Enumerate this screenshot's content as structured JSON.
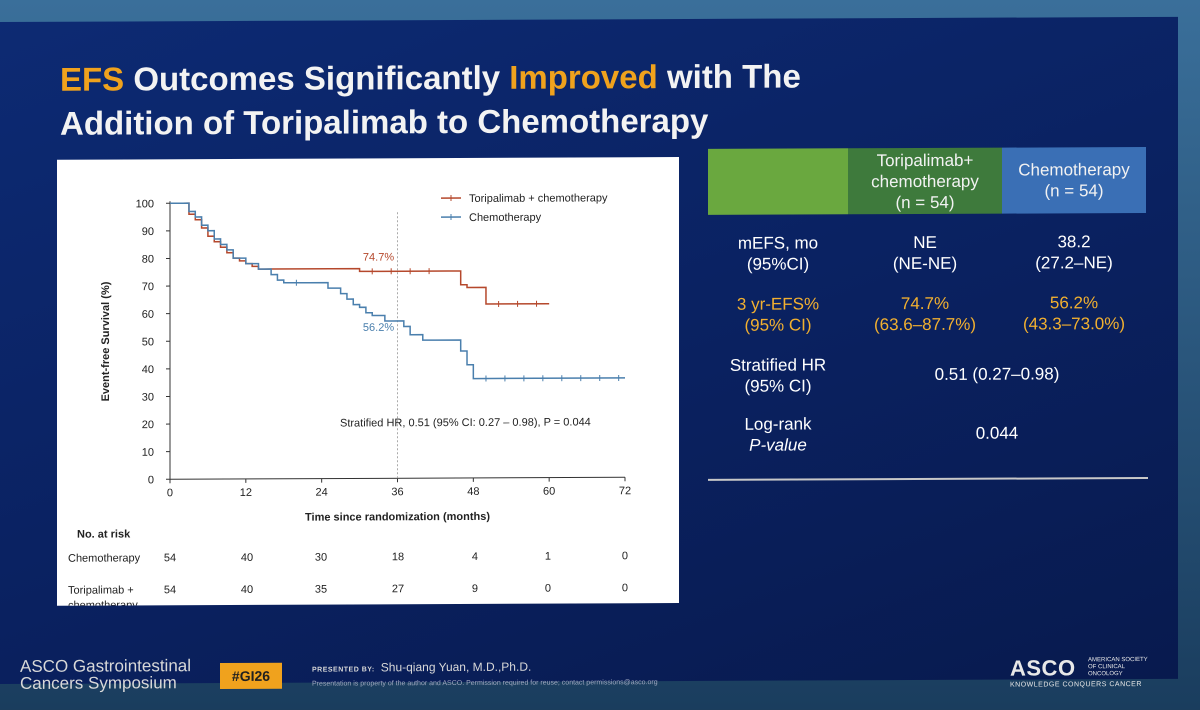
{
  "slide": {
    "title_part1": "EFS",
    "title_part2": " Outcomes Significantly ",
    "title_part3": "Improved",
    "title_part4": " with The",
    "title_line2": "Addition of Toripalimab to Chemotherapy"
  },
  "chart_data": {
    "type": "line",
    "title": "",
    "xlabel": "Time since randomization (months)",
    "ylabel": "Event-free Survival (%)",
    "xlim": [
      0,
      72
    ],
    "ylim": [
      0,
      100
    ],
    "xticks": [
      0,
      12,
      24,
      36,
      48,
      60,
      72
    ],
    "yticks": [
      0,
      10,
      20,
      30,
      40,
      50,
      60,
      70,
      80,
      90,
      100
    ],
    "series": [
      {
        "name": "Toripalimab + chemotherapy",
        "color": "#b5482c",
        "x": [
          0,
          2,
          3,
          4,
          5,
          6,
          7,
          8,
          9,
          10,
          11,
          12,
          13,
          14,
          15,
          16,
          30,
          44,
          46,
          47,
          50,
          60
        ],
        "y": [
          100,
          100,
          96,
          94,
          91,
          88,
          86,
          84,
          82,
          80,
          79,
          78,
          77,
          76,
          76,
          76,
          75,
          75,
          70,
          69,
          63,
          63
        ],
        "label": "74.7%"
      },
      {
        "name": "Chemotherapy",
        "color": "#4a7fad",
        "x": [
          0,
          2,
          3,
          4,
          5,
          6,
          7,
          8,
          9,
          10,
          12,
          14,
          16,
          17,
          18,
          22,
          25,
          27,
          28,
          29,
          30,
          31,
          32,
          34,
          35,
          37,
          38,
          40,
          42,
          46,
          47,
          48,
          72
        ],
        "y": [
          100,
          100,
          97,
          95,
          92,
          90,
          87,
          85,
          83,
          80,
          78,
          76,
          74,
          72,
          71,
          71,
          69,
          67,
          65,
          63,
          62,
          60,
          59,
          57,
          57,
          55,
          52,
          50,
          50,
          46,
          41,
          36,
          36
        ],
        "label": "56.2%"
      }
    ],
    "annotation": "Stratified HR, 0.51 (95% CI: 0.27 – 0.98), P = 0.044",
    "reference_month": 36,
    "legend": [
      "Toripalimab + chemotherapy",
      "Chemotherapy"
    ],
    "risk_table": {
      "title": "No. at risk",
      "rows": [
        {
          "label": "Chemotherapy",
          "values": [
            "54",
            "40",
            "30",
            "18",
            "4",
            "1",
            "0"
          ]
        },
        {
          "label": "Toripalimab + chemotherapy",
          "label_line1": "Toripalimab +",
          "label_line2": "chemotherapy",
          "values": [
            "54",
            "40",
            "35",
            "27",
            "9",
            "0",
            "0"
          ]
        }
      ]
    }
  },
  "table": {
    "header_tori_line1": "Toripalimab+",
    "header_tori_line2": "chemotherapy",
    "header_tori_line3": "(n = 54)",
    "header_chemo_line1": "Chemotherapy",
    "header_chemo_line2": "(n = 54)",
    "rows": [
      {
        "label1": "mEFS, mo",
        "label2": "(95%CI)",
        "tori1": "NE",
        "tori2": "(NE-NE)",
        "chemo1": "38.2",
        "chemo2": "(27.2–NE)"
      },
      {
        "label1": "3 yr-EFS%",
        "label2": "(95% CI)",
        "tori1": "74.7%",
        "tori2": "(63.6–87.7%)",
        "chemo1": "56.2%",
        "chemo2": "(43.3–73.0%)"
      },
      {
        "label1": "Stratified HR",
        "label2": "(95% CI)",
        "combined": "0.51 (0.27–0.98)"
      },
      {
        "label1": "Log-rank",
        "label2": "P-value",
        "combined": "0.044"
      }
    ]
  },
  "footer": {
    "symposium_line1": "ASCO Gastrointestinal",
    "symposium_line2": "Cancers Symposium",
    "hashtag": "#GI26",
    "presented_by": "PRESENTED BY:",
    "presenter": "Shu-qiang Yuan, M.D.,Ph.D.",
    "disclaimer": "Presentation is property of the author and ASCO. Permission required for reuse; contact permissions@asco.org",
    "logo": "ASCO",
    "logo_society": "AMERICAN SOCIETY OF CLINICAL ONCOLOGY",
    "logo_tagline": "KNOWLEDGE CONQUERS CANCER"
  },
  "colors": {
    "slide_bg": "#0b2266",
    "accent_gold": "#f0a21d",
    "header_green_light": "#6aa83f",
    "header_green": "#3e7a3c",
    "header_blue": "#3a6fb5"
  }
}
